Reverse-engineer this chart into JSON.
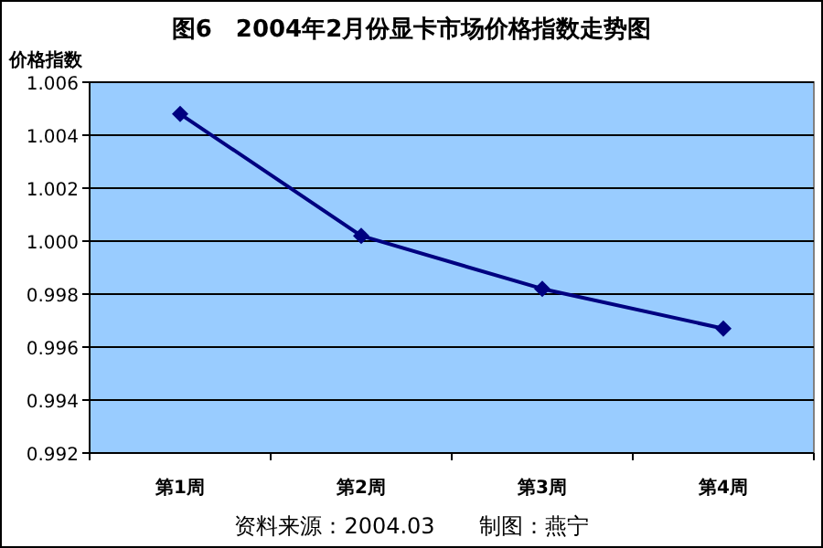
{
  "chart_data": {
    "type": "line",
    "title": "图6　2004年2月份显卡市场价格指数走势图",
    "ylabel": "价格指数",
    "categories": [
      "第1周",
      "第2周",
      "第3周",
      "第4周"
    ],
    "series": [
      {
        "color": "#000080",
        "values": [
          1.0048,
          1.0002,
          0.9982,
          0.9967
        ]
      }
    ],
    "ylim": [
      0.992,
      1.006
    ],
    "yticks": [
      {
        "value": 0.992,
        "label": "0.992"
      },
      {
        "value": 0.994,
        "label": "0.994"
      },
      {
        "value": 0.996,
        "label": "0.996"
      },
      {
        "value": 0.998,
        "label": "0.998"
      },
      {
        "value": 1,
        "label": "1.000"
      },
      {
        "value": 1.002,
        "label": "1.002"
      },
      {
        "value": 1.004,
        "label": "1.004"
      },
      {
        "value": 1.006,
        "label": "1.006"
      }
    ],
    "grid": "y",
    "marker": "diamond",
    "line_style": "solid",
    "annotations": [
      "资料来源：2004.03　　制图：燕宁"
    ]
  }
}
